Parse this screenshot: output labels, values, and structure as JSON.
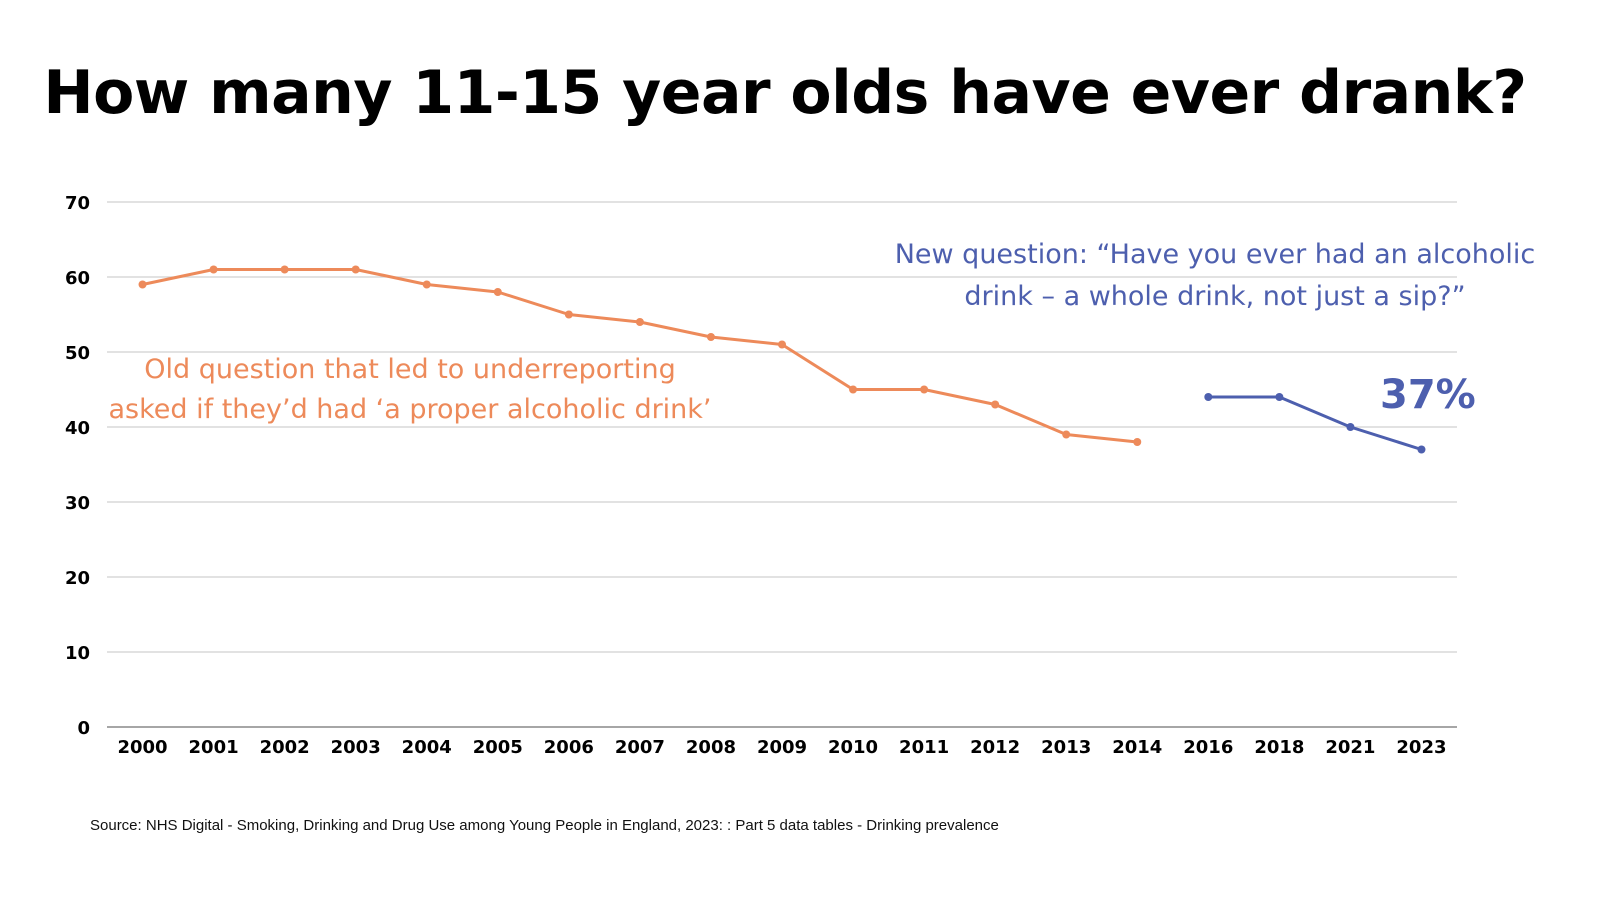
{
  "chart_data": {
    "type": "line",
    "title": "How many 11-15 year olds have ever drank?",
    "xlabel": "",
    "ylabel": "",
    "categories": [
      "2000",
      "2001",
      "2002",
      "2003",
      "2004",
      "2005",
      "2006",
      "2007",
      "2008",
      "2009",
      "2010",
      "2011",
      "2012",
      "2013",
      "2014",
      "2016",
      "2018",
      "2021",
      "2023"
    ],
    "ylim": [
      0,
      70
    ],
    "yticks": [
      0,
      10,
      20,
      30,
      40,
      50,
      60,
      70
    ],
    "grid": true,
    "series": [
      {
        "name": "Old question",
        "color": "#ed8a5a",
        "values": [
          59,
          61,
          61,
          61,
          59,
          58,
          55,
          54,
          52,
          51,
          45,
          45,
          43,
          39,
          38,
          null,
          null,
          null,
          null
        ]
      },
      {
        "name": "New question",
        "color": "#4d5fae",
        "values": [
          null,
          null,
          null,
          null,
          null,
          null,
          null,
          null,
          null,
          null,
          null,
          null,
          null,
          null,
          null,
          44,
          44,
          40,
          37
        ]
      }
    ],
    "annotations": [
      {
        "id": "old",
        "lines": [
          "Old question that led to underreporting",
          "asked if they’d had ‘a proper alcoholic drink’"
        ],
        "color": "#ed8a5a"
      },
      {
        "id": "new",
        "lines": [
          "New question: “Have you ever had an alcoholic",
          "drink – a whole drink, not just a sip?”"
        ],
        "color": "#4d5fae"
      },
      {
        "id": "latest",
        "text": "37%",
        "color": "#4d5fae"
      }
    ],
    "source": "Source: NHS Digital - Smoking, Drinking and Drug Use among Young People in England, 2023: : Part 5 data tables - Drinking prevalence"
  }
}
